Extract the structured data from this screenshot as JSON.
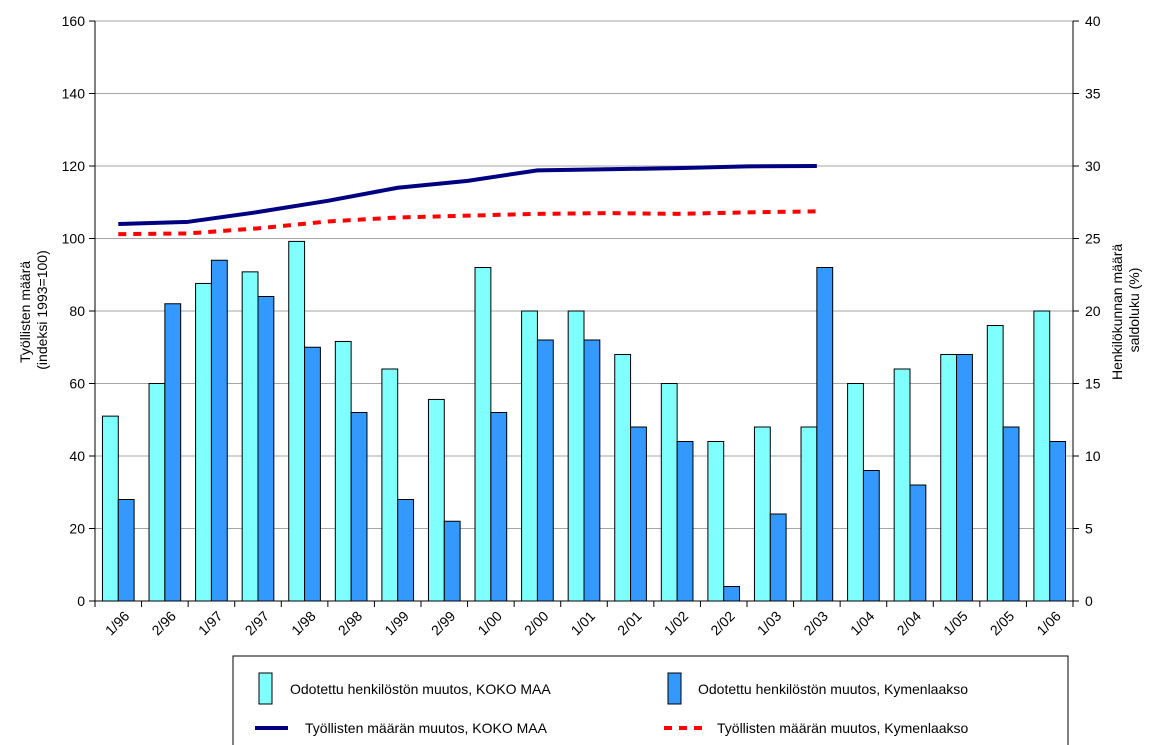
{
  "chart_data": {
    "type": "bar",
    "categories": [
      "1/96",
      "2/96",
      "1/97",
      "2/97",
      "1/98",
      "2/98",
      "1/99",
      "2/99",
      "1/00",
      "2/00",
      "1/01",
      "2/01",
      "1/02",
      "2/02",
      "1/03",
      "2/03",
      "1/04",
      "2/04",
      "1/05",
      "2/05",
      "1/06"
    ],
    "y_left": {
      "label_line1": "Työllisten määrä",
      "label_line2": "(indeksi 1993=100)",
      "lim": [
        0,
        160
      ],
      "ticks": [
        0,
        20,
        40,
        60,
        80,
        100,
        120,
        140,
        160
      ]
    },
    "y_right": {
      "label_line1": "Henkilökunnan määrä",
      "label_line2": "saldoluku (%)",
      "lim": [
        0,
        40
      ],
      "ticks": [
        0,
        5,
        10,
        15,
        20,
        25,
        30,
        35,
        40
      ]
    },
    "grid": true,
    "legend_position": "bottom",
    "bar_series": [
      {
        "name": "Odotettu henkilöstön muutos, KOKO MAA",
        "axis": "right",
        "color": "#80ffff",
        "values": [
          12.75,
          15,
          21.9,
          22.7,
          24.8,
          17.9,
          16,
          13.9,
          23,
          20,
          20,
          17,
          15,
          11,
          12,
          12,
          15,
          16,
          17,
          19,
          20
        ]
      },
      {
        "name": "Odotettu henkilöstön muutos, Kymenlaakso",
        "axis": "right",
        "color": "#3399ff",
        "values": [
          7,
          20.5,
          23.5,
          21,
          17.5,
          13,
          7,
          5.5,
          13,
          18,
          18,
          12,
          11,
          1,
          6,
          23,
          9,
          8,
          17,
          12,
          11
        ]
      }
    ],
    "line_series": [
      {
        "name": "Työllisten määrän  muutos, KOKO MAA",
        "axis": "left",
        "color": "#000080",
        "style": "solid",
        "values": [
          104,
          104.6,
          107.3,
          110.4,
          114,
          115.9,
          118.8,
          119.1,
          119.4,
          119.9,
          120
        ]
      },
      {
        "name": "Työllisten määrän muutos, Kymenlaakso",
        "axis": "left",
        "color": "#ff0000",
        "style": "dashed",
        "values": [
          101.2,
          101.4,
          102.8,
          104.7,
          105.8,
          106.3,
          106.8,
          107,
          106.8,
          107.2,
          107.5
        ]
      }
    ]
  }
}
